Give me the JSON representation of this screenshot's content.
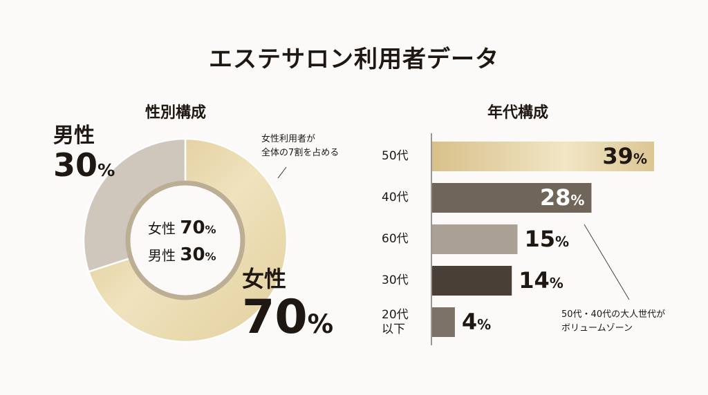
{
  "title": "エステサロン利用者データ",
  "colors": {
    "gold": "#e6d4a6",
    "gold_light": "#f1e6c5",
    "gray_beige": "#cfc6bc",
    "dark_brown": "#4a3f37",
    "mid_brown": "#706559",
    "light_taupe": "#aaa093",
    "taupe": "#7c7267",
    "text": "#1e1712"
  },
  "chart_data": [
    {
      "type": "pie",
      "subtype": "donut",
      "title": "性別構成",
      "categories": [
        "女性",
        "男性"
      ],
      "values": [
        70,
        30
      ],
      "unit": "%",
      "labels": [
        {
          "name": "女性",
          "value": "70",
          "unit": "%"
        },
        {
          "name": "男性",
          "value": "30",
          "unit": "%"
        }
      ],
      "center_lines": [
        {
          "name": "女性",
          "value": "70",
          "unit": "%"
        },
        {
          "name": "男性",
          "value": "30",
          "unit": "%"
        }
      ],
      "annotation": [
        "女性利用者が",
        "全体の7割を占める"
      ]
    },
    {
      "type": "bar",
      "orientation": "horizontal",
      "title": "年代構成",
      "categories": [
        "50代",
        "40代",
        "60代",
        "30代",
        "20代\n以下"
      ],
      "values": [
        39,
        28,
        15,
        14,
        4
      ],
      "value_labels": [
        "39",
        "28",
        "15",
        "14",
        "4"
      ],
      "unit": "%",
      "annotation": [
        "50代・40代の大人世代が",
        "ボリュームゾーン"
      ]
    }
  ]
}
